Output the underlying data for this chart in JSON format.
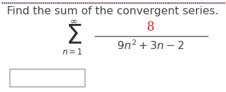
{
  "title": "Find the sum of the convergent series.",
  "title_color": "#444444",
  "title_fontsize": 11.5,
  "background_color": "#ffffff",
  "border_color_blue": "#1a7abf",
  "border_color_red": "#e03030",
  "numerator": "8",
  "numerator_color": "#dd2222",
  "denominator": "$9n^2 + 3n - 2$",
  "denominator_color": "#444444",
  "sigma_color": "#333333",
  "fraction_line_color": "#555555",
  "box_edge_color": "#999999",
  "sigma_fontsize": 28,
  "inf_fontsize": 9,
  "sub_fontsize": 8.5,
  "num_fontsize": 13,
  "denom_fontsize": 11.5,
  "n_border_dots": 110
}
